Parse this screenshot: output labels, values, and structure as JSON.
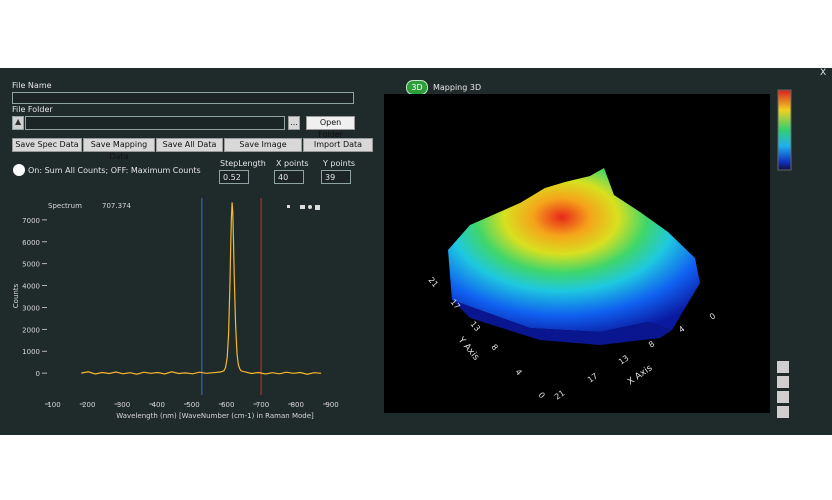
{
  "window": {
    "close": "X"
  },
  "form": {
    "file_name_label": "File Name",
    "file_folder_label": "File Folder",
    "browse": "...",
    "open_folder": "Open Folder",
    "buttons": [
      "Save Spec Data",
      "Save Mapping Data",
      "Save All Data",
      "Save Image",
      "Import Data"
    ],
    "mode_label": "On: Sum All Counts;  OFF: Maximum Counts",
    "step_length": {
      "label": "StepLength",
      "value": 0.52
    },
    "x_points": {
      "label": "X points",
      "value": 40
    },
    "y_points": {
      "label": "Y points",
      "value": 39
    }
  },
  "chart_data": {
    "type": "line",
    "title": "Spectrum",
    "cursor": 707.374,
    "x_label": "Wavelength (nm)  [WaveNumber (cm-1) in Raman Mode]",
    "y_label": "Counts",
    "color": "#f5b82e",
    "x": [
      190,
      210,
      230,
      250,
      270,
      290,
      310,
      330,
      350,
      370,
      390,
      410,
      430,
      450,
      470,
      490,
      510,
      530,
      550,
      570,
      590,
      600,
      605,
      610,
      614,
      618,
      620,
      622,
      624,
      626,
      628,
      630,
      634,
      638,
      642,
      646,
      650,
      660,
      680,
      700,
      720,
      740,
      760,
      780,
      800,
      820,
      840,
      860,
      880
    ],
    "values": [
      0,
      60,
      -40,
      30,
      -20,
      50,
      -30,
      20,
      -50,
      40,
      -10,
      30,
      -40,
      60,
      -20,
      10,
      -30,
      40,
      -10,
      20,
      50,
      100,
      250,
      700,
      1800,
      4200,
      5800,
      7100,
      7800,
      7300,
      6000,
      4500,
      2200,
      900,
      400,
      200,
      100,
      60,
      -20,
      30,
      -40,
      20,
      -30,
      40,
      -10,
      30,
      -50,
      20,
      -10
    ],
    "markers": [
      {
        "x": 537,
        "color": "#3a6fd6"
      },
      {
        "x": 707.374,
        "color": "#c0392b"
      }
    ],
    "xlim": [
      100,
      900
    ],
    "ylim": [
      -1000,
      8000
    ],
    "xticks": [
      100,
      200,
      300,
      400,
      500,
      600,
      700,
      800,
      900
    ],
    "yticks": [
      0,
      1000,
      2000,
      3000,
      4000,
      5000,
      6000,
      7000
    ]
  },
  "mapping": {
    "badge": "3D",
    "title": "Mapping 3D",
    "y_axis_label": "Y Axis",
    "x_axis_label": "X Axis",
    "y_ticks": [
      21,
      17,
      13,
      8,
      4,
      0
    ],
    "x_ticks": [
      0,
      4,
      8,
      13,
      17,
      21
    ]
  }
}
